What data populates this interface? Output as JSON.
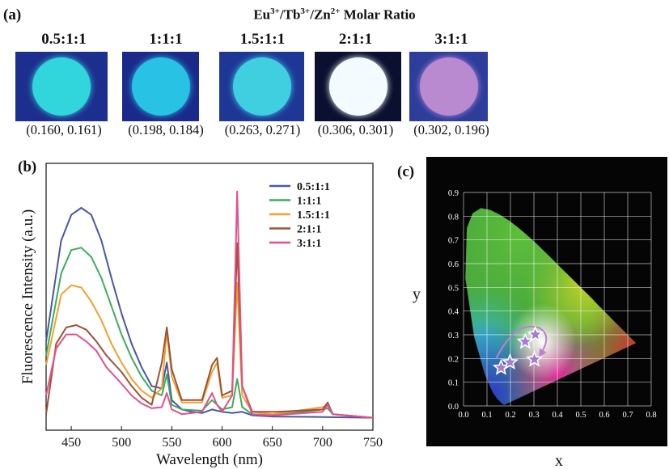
{
  "panel_a": {
    "label": "(a)",
    "title_parts": {
      "eu": "Eu",
      "eu_sup": "3+",
      "slash1": "/",
      "tb": "Tb",
      "tb_sup": "3+",
      "slash2": "/",
      "zn": "Zn",
      "zn_sup": "2+",
      "rest": " Molar Ratio"
    },
    "samples": [
      {
        "ratio": "0.5:1:1",
        "coord": "(0.160, 0.161)",
        "dot_color": "#31d6dc",
        "bg": "#1d2f8e"
      },
      {
        "ratio": "1:1:1",
        "coord": "(0.198, 0.184)",
        "dot_color": "#28c2e4",
        "bg": "#1b2a8a"
      },
      {
        "ratio": "1.5:1:1",
        "coord": "(0.263, 0.271)",
        "dot_color": "#3fcfe0",
        "bg": "#1e3796"
      },
      {
        "ratio": "2:1:1",
        "coord": "(0.306, 0.301)",
        "dot_color": "#f4fbff",
        "bg": "#0b1030"
      },
      {
        "ratio": "3:1:1",
        "coord": "(0.302, 0.196)",
        "dot_color": "#b98ad0",
        "bg": "#2d3d9c"
      }
    ]
  },
  "panel_b": {
    "label": "(b)",
    "chart_data": {
      "type": "line",
      "xlabel": "Wavelength (nm)",
      "ylabel": "Fluorescence Intensity (a.u.)",
      "xlim": [
        425,
        750
      ],
      "xticks": [
        "450",
        "500",
        "550",
        "600",
        "650",
        "700",
        "750"
      ],
      "xtick_values": [
        450,
        500,
        550,
        600,
        650,
        700,
        750
      ],
      "legend_position": "top-right",
      "series": [
        {
          "name": "0.5:1:1",
          "color": "#4a56a8",
          "points": [
            [
              425,
              0.33
            ],
            [
              440,
              0.76
            ],
            [
              450,
              0.87
            ],
            [
              460,
              0.9
            ],
            [
              470,
              0.87
            ],
            [
              480,
              0.76
            ],
            [
              490,
              0.6
            ],
            [
              500,
              0.45
            ],
            [
              510,
              0.32
            ],
            [
              520,
              0.22
            ],
            [
              530,
              0.14
            ],
            [
              540,
              0.13
            ],
            [
              545,
              0.24
            ],
            [
              550,
              0.08
            ],
            [
              560,
              0.04
            ],
            [
              570,
              0.03
            ],
            [
              580,
              0.025
            ],
            [
              590,
              0.04
            ],
            [
              600,
              0.03
            ],
            [
              610,
              0.025
            ],
            [
              620,
              0.03
            ],
            [
              630,
              0.015
            ],
            [
              650,
              0.01
            ],
            [
              700,
              0.008
            ],
            [
              750,
              0.005
            ]
          ]
        },
        {
          "name": "1:1:1",
          "color": "#3aae5c",
          "points": [
            [
              425,
              0.27
            ],
            [
              440,
              0.62
            ],
            [
              450,
              0.72
            ],
            [
              460,
              0.73
            ],
            [
              470,
              0.69
            ],
            [
              480,
              0.6
            ],
            [
              490,
              0.48
            ],
            [
              500,
              0.36
            ],
            [
              510,
              0.26
            ],
            [
              520,
              0.18
            ],
            [
              530,
              0.12
            ],
            [
              540,
              0.1
            ],
            [
              545,
              0.19
            ],
            [
              550,
              0.06
            ],
            [
              560,
              0.04
            ],
            [
              580,
              0.035
            ],
            [
              590,
              0.08
            ],
            [
              600,
              0.04
            ],
            [
              610,
              0.05
            ],
            [
              615,
              0.17
            ],
            [
              620,
              0.05
            ],
            [
              630,
              0.02
            ],
            [
              650,
              0.015
            ],
            [
              700,
              0.04
            ],
            [
              705,
              0.045
            ],
            [
              710,
              0.02
            ],
            [
              750,
              0.005
            ]
          ]
        },
        {
          "name": "1.5:1:1",
          "color": "#f2a12a",
          "points": [
            [
              425,
              0.23
            ],
            [
              440,
              0.53
            ],
            [
              450,
              0.57
            ],
            [
              460,
              0.56
            ],
            [
              470,
              0.5
            ],
            [
              480,
              0.42
            ],
            [
              490,
              0.32
            ],
            [
              500,
              0.24
            ],
            [
              510,
              0.17
            ],
            [
              520,
              0.12
            ],
            [
              530,
              0.09
            ],
            [
              540,
              0.13
            ],
            [
              545,
              0.37
            ],
            [
              550,
              0.18
            ],
            [
              560,
              0.07
            ],
            [
              580,
              0.07
            ],
            [
              590,
              0.2
            ],
            [
              595,
              0.24
            ],
            [
              600,
              0.09
            ],
            [
              610,
              0.1
            ],
            [
              615,
              0.58
            ],
            [
              620,
              0.1
            ],
            [
              630,
              0.03
            ],
            [
              650,
              0.02
            ],
            [
              700,
              0.05
            ],
            [
              705,
              0.06
            ],
            [
              710,
              0.02
            ],
            [
              750,
              0.005
            ]
          ]
        },
        {
          "name": "2:1:1",
          "color": "#9c5236",
          "points": [
            [
              425,
              0.02
            ],
            [
              435,
              0.32
            ],
            [
              445,
              0.39
            ],
            [
              455,
              0.4
            ],
            [
              465,
              0.38
            ],
            [
              475,
              0.33
            ],
            [
              485,
              0.27
            ],
            [
              500,
              0.2
            ],
            [
              510,
              0.14
            ],
            [
              520,
              0.09
            ],
            [
              530,
              0.06
            ],
            [
              540,
              0.24
            ],
            [
              545,
              0.39
            ],
            [
              550,
              0.21
            ],
            [
              560,
              0.08
            ],
            [
              580,
              0.08
            ],
            [
              590,
              0.23
            ],
            [
              595,
              0.26
            ],
            [
              600,
              0.1
            ],
            [
              610,
              0.12
            ],
            [
              615,
              0.75
            ],
            [
              620,
              0.14
            ],
            [
              630,
              0.03
            ],
            [
              655,
              0.03
            ],
            [
              700,
              0.04
            ],
            [
              705,
              0.07
            ],
            [
              710,
              0.02
            ],
            [
              750,
              0.005
            ]
          ]
        },
        {
          "name": "3:1:1",
          "color": "#e44f8d",
          "points": [
            [
              425,
              0.1
            ],
            [
              435,
              0.3
            ],
            [
              445,
              0.36
            ],
            [
              455,
              0.36
            ],
            [
              465,
              0.33
            ],
            [
              475,
              0.29
            ],
            [
              485,
              0.22
            ],
            [
              500,
              0.15
            ],
            [
              510,
              0.1
            ],
            [
              520,
              0.065
            ],
            [
              530,
              0.045
            ],
            [
              540,
              0.05
            ],
            [
              545,
              0.11
            ],
            [
              550,
              0.04
            ],
            [
              560,
              0.02
            ],
            [
              580,
              0.03
            ],
            [
              590,
              0.11
            ],
            [
              595,
              0.06
            ],
            [
              600,
              0.03
            ],
            [
              610,
              0.1
            ],
            [
              615,
              0.97
            ],
            [
              620,
              0.14
            ],
            [
              630,
              0.02
            ],
            [
              650,
              0.015
            ],
            [
              700,
              0.03
            ],
            [
              705,
              0.06
            ],
            [
              710,
              0.02
            ],
            [
              750,
              0.005
            ]
          ]
        }
      ]
    }
  },
  "panel_c": {
    "label": "(c)",
    "chart_data": {
      "type": "scatter",
      "xlabel": "x",
      "ylabel": "y",
      "xlim": [
        0,
        0.8
      ],
      "ylim": [
        0,
        0.9
      ],
      "xticks": [
        "0.0",
        "0.1",
        "0.2",
        "0.3",
        "0.4",
        "0.5",
        "0.6",
        "0.7",
        "0.8"
      ],
      "yticks": [
        "0.0",
        "0.1",
        "0.2",
        "0.3",
        "0.4",
        "0.5",
        "0.6",
        "0.7",
        "0.8",
        "0.9"
      ],
      "grid": true,
      "points": [
        {
          "x": 0.16,
          "y": 0.161
        },
        {
          "x": 0.198,
          "y": 0.184
        },
        {
          "x": 0.263,
          "y": 0.271
        },
        {
          "x": 0.306,
          "y": 0.301
        },
        {
          "x": 0.302,
          "y": 0.196
        }
      ]
    }
  }
}
